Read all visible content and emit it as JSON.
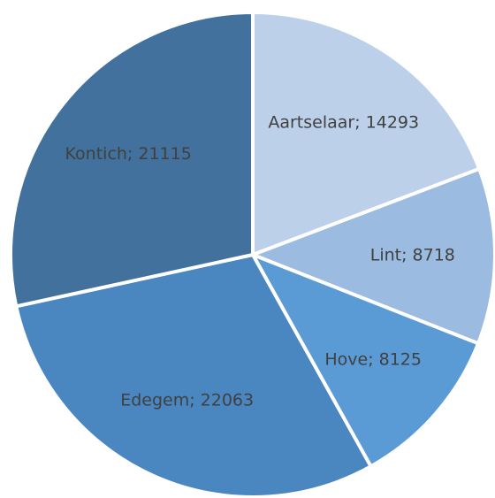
{
  "chart_data": {
    "type": "pie",
    "categories": [
      "Aartselaar",
      "Lint",
      "Hove",
      "Edegem",
      "Kontich"
    ],
    "values": [
      14293,
      8718,
      8125,
      22063,
      21115
    ],
    "value_labels": [
      "Aartselaar; 14293",
      "Lint; 8718",
      "Hove; 8125",
      "Edegem; 22063",
      "Kontich; 21115"
    ],
    "colors": [
      "#bdd0ea",
      "#9bbbe0",
      "#5b9bd5",
      "#4a86c0",
      "#41719c"
    ]
  }
}
